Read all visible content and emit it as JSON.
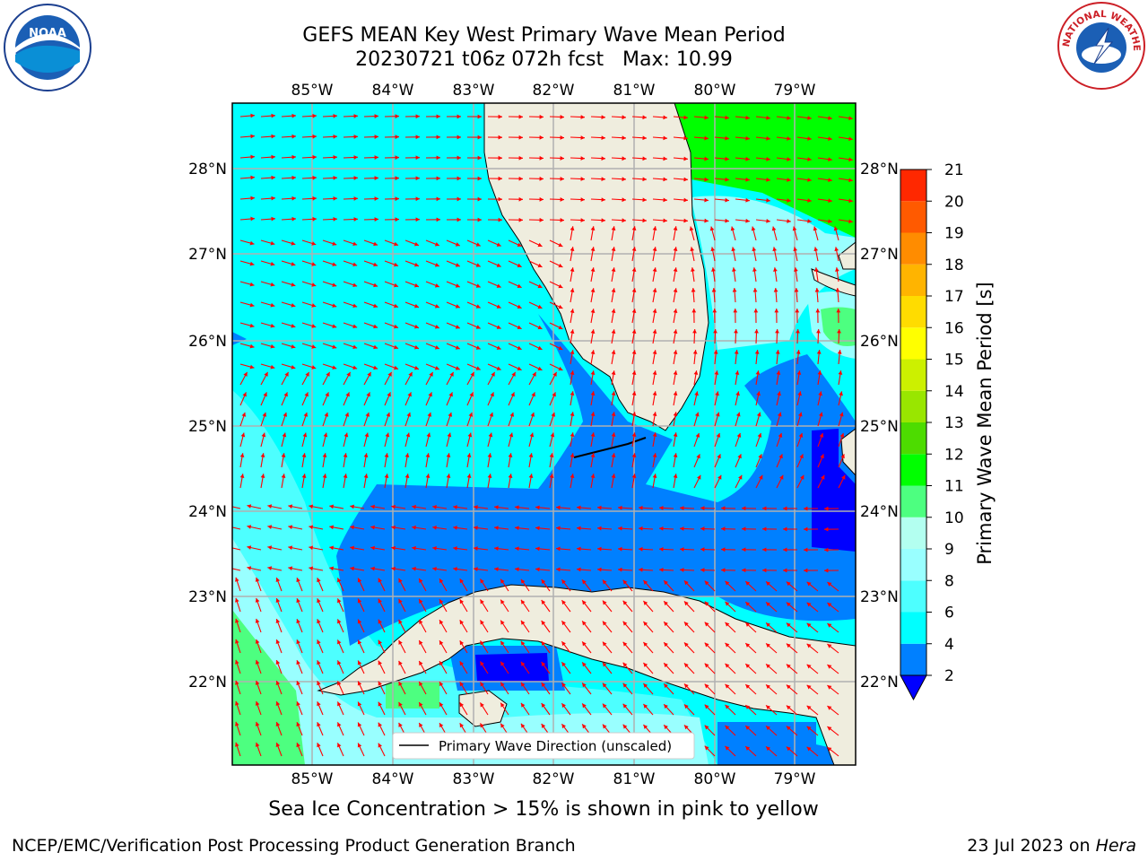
{
  "title": {
    "line1": "GEFS MEAN Key West Primary Wave Mean Period",
    "line2": "20230721 t06z 072h fcst   Max: 10.99"
  },
  "map": {
    "lon_labels": [
      "85°W",
      "84°W",
      "83°W",
      "82°W",
      "81°W",
      "80°W",
      "79°W"
    ],
    "lat_labels": [
      "28°N",
      "27°N",
      "26°N",
      "25°N",
      "24°N",
      "23°N",
      "22°N"
    ],
    "legend": "Primary Wave Direction (unscaled)",
    "colors": {
      "land": "#efedde",
      "vector": "#ff0000",
      "coast": "#000000",
      "grid": "#b0b0b0"
    }
  },
  "colorbar": {
    "label": "Primary Wave Mean Period [s]",
    "ticks": [
      "2",
      "4",
      "6",
      "8",
      "9",
      "10",
      "11",
      "12",
      "13",
      "14",
      "15",
      "16",
      "17",
      "18",
      "19",
      "20",
      "21"
    ],
    "colors": [
      "#0080ff",
      "#00ffff",
      "#4dffff",
      "#99ffff",
      "#b3fff0",
      "#4dff80",
      "#00ff00",
      "#4ddc00",
      "#99e600",
      "#ccf000",
      "#ffff00",
      "#ffdc00",
      "#ffb400",
      "#ff8c00",
      "#ff5a00",
      "#ff2800"
    ],
    "under_color": "#0000ff"
  },
  "note": "Sea Ice Concentration > 15% is shown in pink to yellow",
  "footer": {
    "left": "NCEP/EMC/Verification Post Processing Product Generation Branch",
    "right_prefix": "23 Jul 2023 on ",
    "right_host": "Hera"
  },
  "logos": {
    "noaa_text": "NOAA",
    "nws_text": "NATIONAL WEATHER SERVICE"
  }
}
